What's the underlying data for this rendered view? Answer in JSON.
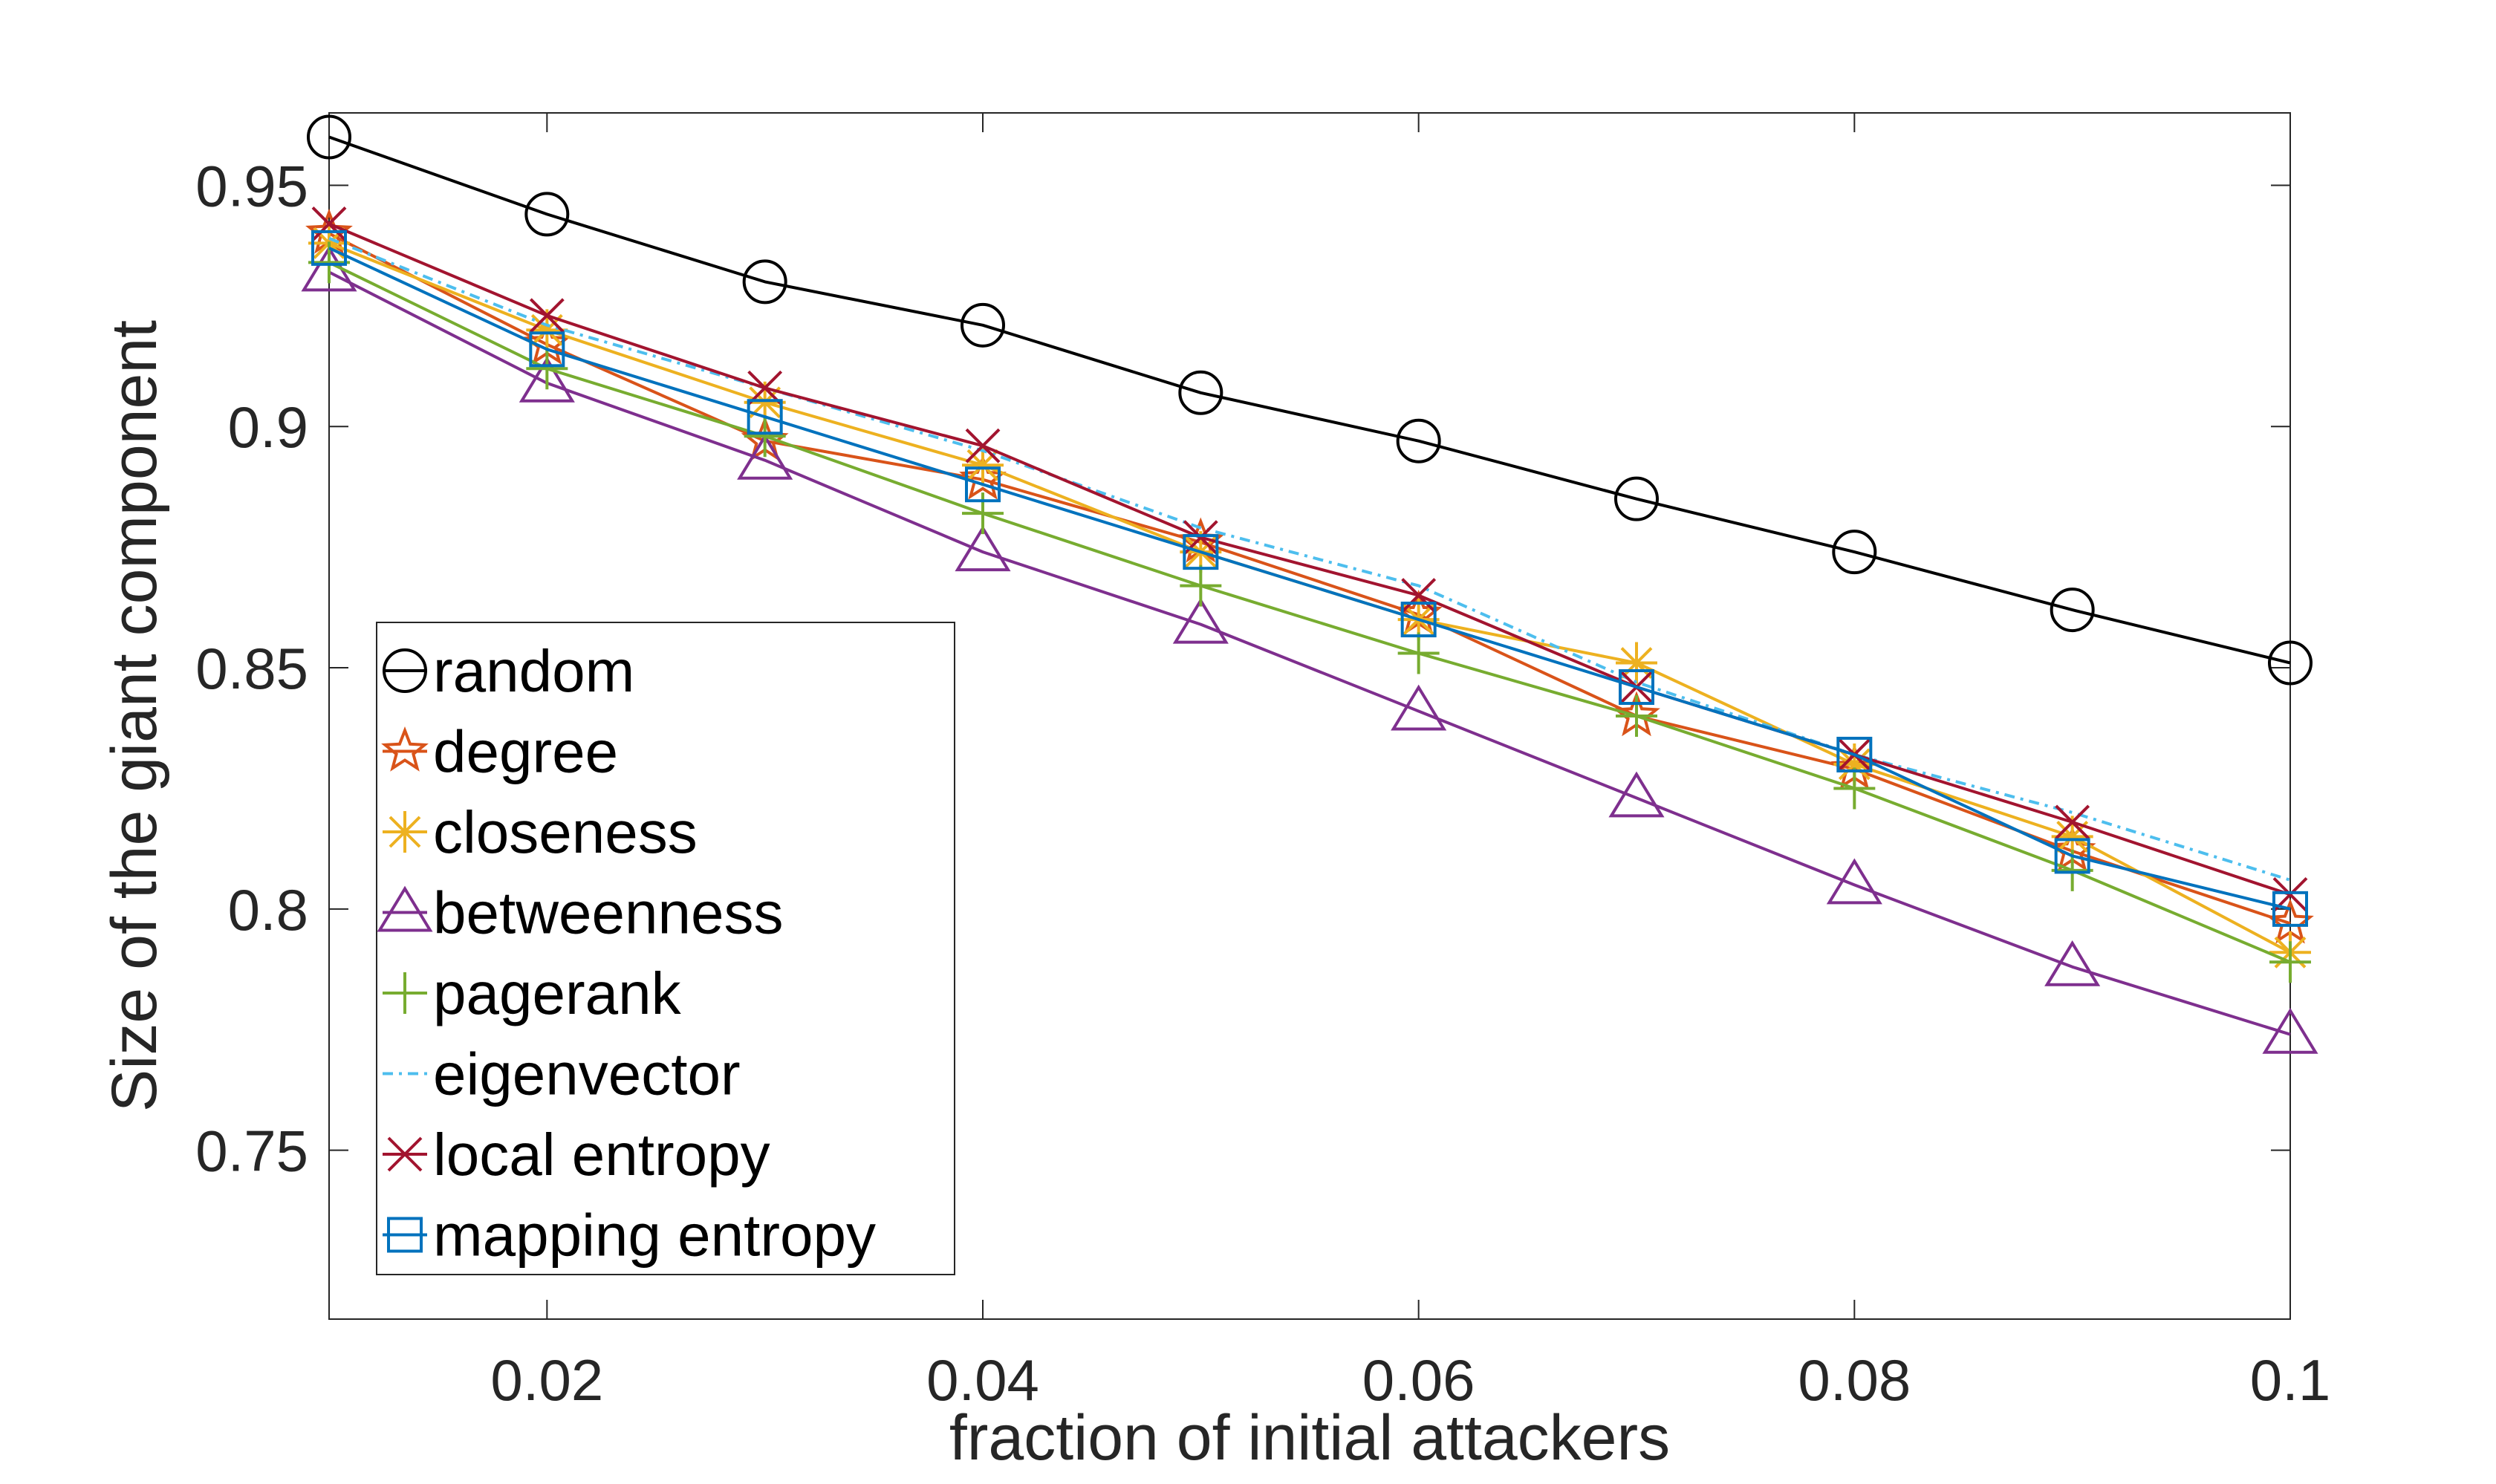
{
  "chart_data": {
    "type": "line",
    "xlabel": "fraction of initial attackers",
    "ylabel": "Size of the giant component",
    "xlim": [
      0.01,
      0.1
    ],
    "ylim": [
      0.715,
      0.965
    ],
    "xticks": [
      0.02,
      0.04,
      0.06,
      0.08,
      0.1
    ],
    "xtick_labels": [
      "0.02",
      "0.04",
      "0.06",
      "0.08",
      "0.1"
    ],
    "yticks": [
      0.75,
      0.8,
      0.85,
      0.9,
      0.95
    ],
    "ytick_labels": [
      "0.75",
      "0.8",
      "0.85",
      "0.9",
      "0.95"
    ],
    "grid": false,
    "legend_position": "bottom-left",
    "x": [
      0.01,
      0.02,
      0.03,
      0.04,
      0.05,
      0.06,
      0.07,
      0.08,
      0.09,
      0.1
    ],
    "series": [
      {
        "name": "random",
        "marker": "circle",
        "dash": "solid",
        "color": "#000000",
        "values": [
          0.96,
          0.944,
          0.93,
          0.921,
          0.907,
          0.897,
          0.885,
          0.874,
          0.862,
          0.851
        ]
      },
      {
        "name": "degree",
        "marker": "star",
        "dash": "solid",
        "color": "#D95319",
        "values": [
          0.94,
          0.917,
          0.897,
          0.889,
          0.876,
          0.861,
          0.84,
          0.829,
          0.812,
          0.797
        ]
      },
      {
        "name": "closeness",
        "marker": "asterisk",
        "dash": "solid",
        "color": "#EDB120",
        "values": [
          0.938,
          0.92,
          0.905,
          0.892,
          0.874,
          0.86,
          0.851,
          0.83,
          0.815,
          0.791
        ]
      },
      {
        "name": "betweenness",
        "marker": "triangle",
        "dash": "solid",
        "color": "#7E2F8E",
        "values": [
          0.932,
          0.909,
          0.893,
          0.874,
          0.859,
          0.841,
          0.823,
          0.805,
          0.788,
          0.774
        ]
      },
      {
        "name": "pagerank",
        "marker": "plus",
        "dash": "solid",
        "color": "#77AC30",
        "values": [
          0.934,
          0.912,
          0.898,
          0.882,
          0.867,
          0.853,
          0.84,
          0.825,
          0.808,
          0.789
        ]
      },
      {
        "name": "eigenvector",
        "marker": "none",
        "dash": "dashdot",
        "color": "#4DBEEE",
        "values": [
          0.939,
          0.921,
          0.908,
          0.895,
          0.879,
          0.867,
          0.847,
          0.832,
          0.82,
          0.806
        ]
      },
      {
        "name": "local entropy",
        "marker": "x",
        "dash": "solid",
        "color": "#A2142F",
        "values": [
          0.942,
          0.923,
          0.908,
          0.896,
          0.877,
          0.865,
          0.846,
          0.832,
          0.818,
          0.803
        ]
      },
      {
        "name": "mapping entropy",
        "marker": "square",
        "dash": "solid",
        "color": "#0072BD",
        "values": [
          0.937,
          0.916,
          0.902,
          0.888,
          0.874,
          0.86,
          0.846,
          0.832,
          0.811,
          0.8
        ]
      }
    ]
  }
}
